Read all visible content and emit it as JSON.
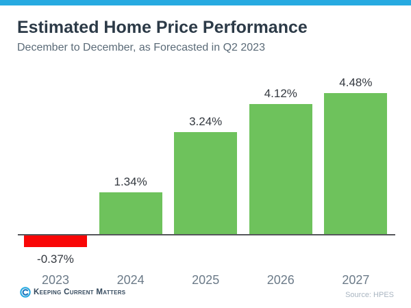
{
  "header": {
    "title": "Estimated Home Price Performance",
    "subtitle": "December to December, as Forecasted in Q2 2023"
  },
  "chart_data": {
    "type": "bar",
    "title": "Estimated Home Price Performance",
    "subtitle": "December to December, as Forecasted in Q2 2023",
    "categories": [
      "2023",
      "2024",
      "2025",
      "2026",
      "2027"
    ],
    "values": [
      -0.37,
      1.34,
      3.24,
      4.12,
      4.48
    ],
    "value_labels": [
      "-0.37%",
      "1.34%",
      "3.24%",
      "4.12%",
      "4.48%"
    ],
    "xlabel": "",
    "ylabel": "",
    "ylim": [
      -0.8,
      5.2
    ],
    "grid": false,
    "legend_position": "none",
    "bar_colors": {
      "positive": "#6ec25c",
      "negative": "#f90606"
    }
  },
  "colors": {
    "accent_bar": "#27aae1",
    "axis_line": "#55565a",
    "title_text": "#2c3a47",
    "subtitle_text": "#5a6a77",
    "value_label_text": "#33383f",
    "year_label_text": "#6b7a88"
  },
  "footer": {
    "brand": "Keeping Current Matters",
    "source": "Source: HPES"
  }
}
